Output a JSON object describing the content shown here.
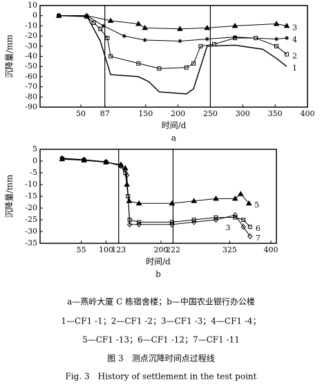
{
  "chart_data": [
    {
      "type": "line",
      "subtitle": "a",
      "x_label": "时间/d",
      "y_label": "沉降量/mm",
      "xlim": [
        -13,
        400
      ],
      "xticks": [
        50,
        87,
        150,
        200,
        250,
        300,
        350,
        400
      ],
      "ylim": [
        -90,
        10
      ],
      "yticks": [
        10,
        0,
        -10,
        -20,
        -30,
        -40,
        -50,
        -60,
        -70,
        -80,
        -90
      ],
      "vlines": [
        87,
        250
      ],
      "series": [
        {
          "name": "1",
          "color": "#000",
          "marker": "none",
          "x": [
            16,
            59,
            80,
            96,
            139,
            155,
            171,
            213,
            224,
            235,
            245,
            288,
            331,
            352,
            368
          ],
          "values": [
            0,
            0,
            -25,
            -58,
            -60,
            -65,
            -75,
            -77,
            -72,
            -50,
            -30,
            -29,
            -33,
            -42,
            -50
          ]
        },
        {
          "name": "2",
          "color": "#000",
          "marker": "square",
          "x": [
            16,
            59,
            70,
            80,
            91,
            96,
            139,
            171,
            213,
            224,
            235,
            256,
            288,
            320,
            352,
            368
          ],
          "values": [
            0,
            -1,
            -7,
            -13,
            -22,
            -40,
            -47,
            -52,
            -51,
            -47,
            -30,
            -28,
            -22,
            -22,
            -30,
            -38
          ]
        },
        {
          "name": "3",
          "color": "#000",
          "marker": "triangle",
          "x": [
            16,
            59,
            96,
            139,
            149,
            203,
            245,
            288,
            352,
            368
          ],
          "values": [
            0,
            0,
            -5,
            -8,
            -12,
            -13,
            -12,
            -10,
            -8,
            -10
          ]
        },
        {
          "name": "4",
          "color": "#000",
          "marker": "star",
          "x": [
            16,
            59,
            85,
            117,
            149,
            203,
            245,
            288,
            352,
            368
          ],
          "values": [
            0,
            0,
            -10,
            -20,
            -24,
            -25,
            -23,
            -21,
            -23,
            -22
          ]
        }
      ]
    },
    {
      "type": "line",
      "subtitle": "b",
      "x_label": "时间/d",
      "y_label": "沉降量/mm",
      "xlim": [
        -20,
        410
      ],
      "xticks": [
        55,
        100,
        123,
        200,
        222,
        325,
        400
      ],
      "ylim": [
        -35,
        5
      ],
      "yticks": [
        5,
        0,
        -5,
        -10,
        -15,
        -20,
        -25,
        -30,
        -35
      ],
      "vlines": [
        123,
        222
      ],
      "annotations": [
        "3"
      ],
      "series": [
        {
          "name": "5",
          "color": "#000",
          "marker": "triangle",
          "x": [
            20,
            60,
            100,
            127,
            135,
            138,
            142,
            160,
            220,
            260,
            300,
            335,
            345,
            360
          ],
          "values": [
            0.8,
            0.3,
            -0.5,
            -1.5,
            -3,
            -10,
            -17,
            -18,
            -18,
            -17,
            -16,
            -16,
            -14,
            -18
          ]
        },
        {
          "name": "6",
          "color": "#000",
          "marker": "square",
          "x": [
            20,
            60,
            100,
            127,
            135,
            140,
            143,
            160,
            220,
            260,
            300,
            335,
            350,
            362
          ],
          "values": [
            1,
            0.5,
            -0.5,
            -2,
            -5,
            -15,
            -25,
            -26,
            -26,
            -25,
            -24,
            -24,
            -25,
            -28
          ]
        },
        {
          "name": "7",
          "color": "#000",
          "marker": "diamond",
          "x": [
            20,
            60,
            100,
            127,
            138,
            143,
            160,
            220,
            260,
            300,
            335,
            350,
            362
          ],
          "values": [
            1.2,
            0.6,
            -0.3,
            -2,
            -6,
            -27,
            -27,
            -27,
            -26,
            -25,
            -23,
            -28,
            -32
          ]
        }
      ]
    }
  ],
  "caption": {
    "lines": [
      "a—燕岭大厦 C 栋宿舍楼；b—中国农业银行办公楼",
      "1—CF1 -1；2—CF1 -2；3—CF1 -3；4—CF1 -4；",
      "5—CF1 -13；6—CF1 -12；7—CF1 -11"
    ],
    "figure_cn": "图 3　测点沉降时间点过程线",
    "figure_en": "Fig. 3　History of settlement in the test point"
  }
}
